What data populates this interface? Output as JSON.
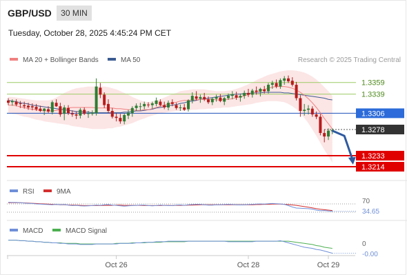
{
  "header": {
    "pair": "GBP/USD",
    "timeframe": "30 MIN",
    "datetime": "Tuesday, October 28, 2025 4:45:24 PM CET"
  },
  "legend": {
    "ma20_label": "MA 20 + Bollinger Bands",
    "ma50_label": "MA 50",
    "credit": "Research © 2025 Trading Central"
  },
  "colors": {
    "up": "#2e7d32",
    "down": "#b71c1c",
    "ma20": "#f08080",
    "ma50": "#3b5b92",
    "band_fill": "#fbdcdc",
    "resistance": "#9ccc65",
    "pivot": "#1a4fb8",
    "support": "#e00000",
    "current": "#333333",
    "arrow": "#2f5aa0",
    "rsi": "#6f8fd8",
    "rsi_ma": "#d32f2f",
    "macd": "#6f8fd8",
    "macd_signal": "#4caf50"
  },
  "chart_data": {
    "type": "candlestick",
    "price_axis_range": [
      1.3195,
      1.338
    ],
    "x_ticks": [
      {
        "index": 27,
        "label": "Oct 26"
      },
      {
        "index": 60,
        "label": "Oct 28"
      },
      {
        "index": 80,
        "label": "Oct 29"
      }
    ],
    "levels": [
      {
        "label": "1.3359",
        "value": 1.3359,
        "kind": "resistance"
      },
      {
        "label": "1.3339",
        "value": 1.3339,
        "kind": "resistance"
      },
      {
        "label": "1.3306",
        "value": 1.3306,
        "kind": "pivot"
      },
      {
        "label": "1.3278",
        "value": 1.3278,
        "kind": "current"
      },
      {
        "label": "1.3233",
        "value": 1.3233,
        "kind": "support"
      },
      {
        "label": "1.3214",
        "value": 1.3214,
        "kind": "support"
      }
    ],
    "forecast_arrow": {
      "from_index": 81,
      "from_value": 1.3276,
      "mid_index": 84,
      "mid_value": 1.3267,
      "to_index": 86,
      "to_value": 1.322
    },
    "candles": [
      [
        1.3328,
        1.3332,
        1.332,
        1.3324
      ],
      [
        1.3325,
        1.333,
        1.3319,
        1.3327
      ],
      [
        1.3326,
        1.333,
        1.3318,
        1.3321
      ],
      [
        1.3323,
        1.3327,
        1.3315,
        1.3322
      ],
      [
        1.332,
        1.3326,
        1.3314,
        1.3318
      ],
      [
        1.3319,
        1.3324,
        1.3312,
        1.3316
      ],
      [
        1.3318,
        1.3323,
        1.3311,
        1.3316
      ],
      [
        1.3317,
        1.3322,
        1.331,
        1.3313
      ],
      [
        1.3314,
        1.3319,
        1.3308,
        1.331
      ],
      [
        1.331,
        1.3315,
        1.3303,
        1.3314
      ],
      [
        1.3313,
        1.3318,
        1.3306,
        1.3309
      ],
      [
        1.3308,
        1.3328,
        1.3304,
        1.3325
      ],
      [
        1.3324,
        1.333,
        1.3317,
        1.3318
      ],
      [
        1.3318,
        1.3324,
        1.33,
        1.3304
      ],
      [
        1.3305,
        1.332,
        1.3294,
        1.3316
      ],
      [
        1.3315,
        1.332,
        1.3303,
        1.3306
      ],
      [
        1.3306,
        1.3311,
        1.33,
        1.3304
      ],
      [
        1.3304,
        1.3309,
        1.3296,
        1.3302
      ],
      [
        1.3302,
        1.3315,
        1.3297,
        1.3312
      ],
      [
        1.3312,
        1.3316,
        1.3303,
        1.3305
      ],
      [
        1.3305,
        1.331,
        1.3298,
        1.3306
      ],
      [
        1.3305,
        1.3311,
        1.3302,
        1.3307
      ],
      [
        1.3306,
        1.3366,
        1.3302,
        1.3352
      ],
      [
        1.335,
        1.3358,
        1.3332,
        1.3338
      ],
      [
        1.3338,
        1.3342,
        1.3315,
        1.332
      ],
      [
        1.3322,
        1.333,
        1.3306,
        1.331
      ],
      [
        1.331,
        1.3315,
        1.3297,
        1.33
      ],
      [
        1.33,
        1.3306,
        1.3292,
        1.3298
      ],
      [
        1.3298,
        1.3305,
        1.3288,
        1.3292
      ],
      [
        1.3292,
        1.3306,
        1.3287,
        1.3303
      ],
      [
        1.3302,
        1.3312,
        1.3296,
        1.3307
      ],
      [
        1.3306,
        1.3318,
        1.33,
        1.3315
      ],
      [
        1.3315,
        1.3323,
        1.331,
        1.3319
      ],
      [
        1.3318,
        1.3324,
        1.3311,
        1.3318
      ],
      [
        1.3318,
        1.3326,
        1.3313,
        1.3322
      ],
      [
        1.3321,
        1.3325,
        1.3316,
        1.332
      ],
      [
        1.332,
        1.3326,
        1.3314,
        1.3323
      ],
      [
        1.3322,
        1.3333,
        1.3318,
        1.3328
      ],
      [
        1.3326,
        1.333,
        1.3318,
        1.332
      ],
      [
        1.332,
        1.3326,
        1.3313,
        1.3316
      ],
      [
        1.3316,
        1.3328,
        1.3311,
        1.3324
      ],
      [
        1.3325,
        1.333,
        1.3318,
        1.3322
      ],
      [
        1.332,
        1.3324,
        1.3312,
        1.3315
      ],
      [
        1.3315,
        1.3321,
        1.331,
        1.3316
      ],
      [
        1.3316,
        1.3322,
        1.331,
        1.3312
      ],
      [
        1.3313,
        1.333,
        1.3309,
        1.3328
      ],
      [
        1.3328,
        1.3342,
        1.3323,
        1.3336
      ],
      [
        1.3335,
        1.3344,
        1.3328,
        1.3331
      ],
      [
        1.3331,
        1.3338,
        1.3324,
        1.3334
      ],
      [
        1.3334,
        1.3341,
        1.3327,
        1.333
      ],
      [
        1.333,
        1.3335,
        1.3322,
        1.3325
      ],
      [
        1.3325,
        1.3333,
        1.332,
        1.3331
      ],
      [
        1.3331,
        1.3338,
        1.3326,
        1.3334
      ],
      [
        1.3333,
        1.3339,
        1.3325,
        1.3327
      ],
      [
        1.3326,
        1.3334,
        1.332,
        1.3332
      ],
      [
        1.3332,
        1.334,
        1.3329,
        1.3336
      ],
      [
        1.3336,
        1.3344,
        1.333,
        1.3338
      ],
      [
        1.3337,
        1.3343,
        1.3329,
        1.3333
      ],
      [
        1.3333,
        1.334,
        1.3326,
        1.3336
      ],
      [
        1.3336,
        1.3345,
        1.3331,
        1.3341
      ],
      [
        1.3341,
        1.3348,
        1.3334,
        1.3338
      ],
      [
        1.3338,
        1.3348,
        1.3333,
        1.3345
      ],
      [
        1.3345,
        1.3352,
        1.3338,
        1.3343
      ],
      [
        1.3343,
        1.335,
        1.3335,
        1.3348
      ],
      [
        1.3347,
        1.3353,
        1.334,
        1.3344
      ],
      [
        1.3344,
        1.3358,
        1.334,
        1.3355
      ],
      [
        1.3355,
        1.3362,
        1.3348,
        1.3358
      ],
      [
        1.3358,
        1.3364,
        1.3349,
        1.3352
      ],
      [
        1.3352,
        1.3366,
        1.3348,
        1.3363
      ],
      [
        1.3362,
        1.337,
        1.3355,
        1.3366
      ],
      [
        1.3366,
        1.3371,
        1.3358,
        1.3361
      ],
      [
        1.3362,
        1.3368,
        1.3352,
        1.3355
      ],
      [
        1.3355,
        1.336,
        1.3328,
        1.3332
      ],
      [
        1.3332,
        1.3337,
        1.33,
        1.331
      ],
      [
        1.331,
        1.3322,
        1.3302,
        1.3312
      ],
      [
        1.3312,
        1.332,
        1.3304,
        1.3314
      ],
      [
        1.3314,
        1.3318,
        1.33,
        1.3304
      ],
      [
        1.3304,
        1.3309,
        1.3296,
        1.33
      ],
      [
        1.33,
        1.3305,
        1.3268,
        1.3272
      ],
      [
        1.3272,
        1.3278,
        1.3256,
        1.3266
      ],
      [
        1.3266,
        1.328,
        1.326,
        1.3276
      ],
      [
        1.3275,
        1.328,
        1.327,
        1.3277
      ]
    ],
    "upper_band": [
      1.3334,
      1.3334,
      1.3333,
      1.3332,
      1.3331,
      1.333,
      1.3329,
      1.3328,
      1.3328,
      1.3328,
      1.3328,
      1.333,
      1.3333,
      1.3337,
      1.3341,
      1.3344,
      1.3347,
      1.3349,
      1.335,
      1.3351,
      1.3352,
      1.3352,
      1.3352,
      1.3352,
      1.3352,
      1.3351,
      1.3349,
      1.3347,
      1.3344,
      1.3341,
      1.3338,
      1.3334,
      1.3331,
      1.3328,
      1.3326,
      1.3325,
      1.3326,
      1.3328,
      1.333,
      1.3333,
      1.3336,
      1.3339,
      1.3341,
      1.3344,
      1.3345,
      1.3346,
      1.3347,
      1.3347,
      1.3347,
      1.3347,
      1.3346,
      1.3345,
      1.3344,
      1.3344,
      1.3344,
      1.3345,
      1.3346,
      1.3348,
      1.335,
      1.3353,
      1.3356,
      1.3359,
      1.3363,
      1.3366,
      1.3369,
      1.3372,
      1.3374,
      1.3376,
      1.3378,
      1.3379,
      1.338,
      1.338,
      1.3379,
      1.3378,
      1.3376,
      1.3373,
      1.3369,
      1.3364,
      1.3358,
      1.3351,
      1.3344,
      1.3336
    ],
    "lower_band": [
      1.3306,
      1.3305,
      1.3304,
      1.3302,
      1.33,
      1.3299,
      1.3297,
      1.3295,
      1.3294,
      1.3292,
      1.3291,
      1.329,
      1.3289,
      1.3288,
      1.3287,
      1.3286,
      1.3284,
      1.3283,
      1.3282,
      1.3281,
      1.328,
      1.3279,
      1.3279,
      1.3279,
      1.3279,
      1.328,
      1.328,
      1.3282,
      1.3283,
      1.3285,
      1.3287,
      1.3289,
      1.3292,
      1.3295,
      1.3297,
      1.33,
      1.3302,
      1.3304,
      1.3306,
      1.3307,
      1.3308,
      1.3309,
      1.331,
      1.331,
      1.3311,
      1.3311,
      1.3312,
      1.3312,
      1.3313,
      1.3313,
      1.3314,
      1.3314,
      1.3315,
      1.3315,
      1.3316,
      1.3316,
      1.3317,
      1.3318,
      1.3319,
      1.332,
      1.3321,
      1.3322,
      1.3324,
      1.3325,
      1.3326,
      1.3327,
      1.3327,
      1.3327,
      1.3326,
      1.3325,
      1.3322,
      1.3318,
      1.3313,
      1.3306,
      1.3298,
      1.3289,
      1.3278,
      1.3267,
      1.3255,
      1.3243,
      1.3232,
      1.3221
    ],
    "ma20": [
      1.332,
      1.332,
      1.3319,
      1.3317,
      1.3316,
      1.3314,
      1.3313,
      1.3312,
      1.3311,
      1.331,
      1.331,
      1.331,
      1.3311,
      1.3312,
      1.3314,
      1.3315,
      1.3316,
      1.3316,
      1.3316,
      1.3316,
      1.3316,
      1.3316,
      1.3315,
      1.3315,
      1.3315,
      1.3315,
      1.3315,
      1.3314,
      1.3314,
      1.3313,
      1.3312,
      1.3312,
      1.3311,
      1.3311,
      1.3312,
      1.3312,
      1.3314,
      1.3316,
      1.3318,
      1.332,
      1.3322,
      1.3324,
      1.3325,
      1.3327,
      1.3328,
      1.3328,
      1.3329,
      1.3329,
      1.333,
      1.333,
      1.333,
      1.333,
      1.3329,
      1.3329,
      1.333,
      1.333,
      1.3331,
      1.3333,
      1.3334,
      1.3336,
      1.3338,
      1.334,
      1.3343,
      1.3345,
      1.3347,
      1.3349,
      1.3351,
      1.3352,
      1.3352,
      1.3352,
      1.3351,
      1.3349,
      1.3346,
      1.3342,
      1.3337,
      1.3331,
      1.3324,
      1.3316,
      1.3307,
      1.3297,
      1.3288,
      1.3279
    ],
    "ma50": [
      1.3328,
      1.3327,
      1.3326,
      1.3324,
      1.3323,
      1.3322,
      1.332,
      1.3319,
      1.3318,
      1.3317,
      1.3316,
      1.3315,
      1.3314,
      1.3313,
      1.3312,
      1.3311,
      1.331,
      1.3309,
      1.3309,
      1.3308,
      1.3308,
      1.3307,
      1.3307,
      1.3307,
      1.3307,
      1.3307,
      1.3307,
      1.3307,
      1.3307,
      1.3308,
      1.3308,
      1.3309,
      1.331,
      1.331,
      1.3311,
      1.3312,
      1.3313,
      1.3315,
      1.3316,
      1.3317,
      1.3319,
      1.332,
      1.3321,
      1.3323,
      1.3324,
      1.3326,
      1.3327,
      1.3328,
      1.333,
      1.3331,
      1.3332,
      1.3333,
      1.3334,
      1.3335,
      1.3336,
      1.3337,
      1.3338,
      1.3339,
      1.3339,
      1.334,
      1.334,
      1.3341,
      1.3341,
      1.3341,
      1.3342,
      1.3342,
      1.3342,
      1.3342,
      1.3342,
      1.3341,
      1.3341,
      1.334,
      1.3339,
      1.3338,
      1.3337,
      1.3336,
      1.3335,
      1.3334,
      1.3333,
      1.3332,
      1.333,
      1.3329
    ],
    "rsi": {
      "name": "RSI",
      "ma_name": "9MA",
      "level_label": "70",
      "level": 70,
      "current_label": "34.65",
      "range": [
        0,
        100
      ],
      "rsi_values": [
        78,
        77,
        77.0,
        76,
        74,
        73,
        72,
        70,
        69,
        68.0,
        67,
        66,
        68,
        66,
        67,
        64,
        62,
        63,
        61,
        60.0,
        61,
        62,
        64,
        63,
        66,
        67,
        64,
        63,
        61,
        59.0,
        61,
        62,
        63,
        64,
        64,
        62,
        61,
        62,
        64,
        63,
        62,
        62,
        64,
        65,
        63,
        66,
        67,
        68,
        68,
        66,
        64,
        64,
        66,
        66,
        67,
        68.0,
        67,
        66,
        65,
        66,
        67,
        68,
        69,
        70,
        69,
        71,
        72.0,
        71,
        70,
        68,
        62,
        55,
        50,
        49,
        48,
        47,
        45,
        40,
        37,
        38.0,
        36,
        34.65
      ],
      "ma_values": [
        76,
        76,
        76.0,
        76,
        75,
        74,
        73,
        72,
        71,
        70.0,
        69,
        68,
        67,
        66,
        66,
        65,
        64,
        64,
        63,
        62.0,
        62,
        62,
        62,
        62,
        63,
        63,
        63,
        64,
        64,
        63.0,
        63,
        63,
        63,
        63,
        62,
        62,
        62,
        62,
        62,
        63,
        63,
        62,
        63,
        63,
        63,
        64,
        64,
        65,
        66,
        66,
        66,
        66,
        66,
        66,
        66,
        66.0,
        66,
        66,
        66,
        66,
        66,
        66,
        67,
        67,
        68,
        68,
        69.0,
        69,
        69,
        68,
        67,
        65,
        63,
        60,
        57,
        54,
        51,
        47,
        44,
        42.0,
        40,
        38
      ]
    },
    "macd": {
      "name": "MACD",
      "signal_name": "MACD Signal",
      "zero_label": "0",
      "current_label": "-0.00",
      "range": [
        -0.0026,
        0.0008
      ],
      "macd_values": [
        0.0001,
        0.0001,
        0.0001,
        0.0,
        -0.0,
        -0.0001,
        -0.0001,
        -0.0002,
        -0.0002,
        -0.0003,
        -0.0003,
        -0.0004,
        -0.0004,
        -0.0005,
        -0.0005,
        -0.0006,
        -0.0006,
        -0.0006,
        -0.0007,
        -0.0007,
        -0.0007,
        -0.0007,
        -0.0006,
        -0.0006,
        -0.0006,
        -0.0006,
        -0.0006,
        -0.0006,
        -0.0005,
        -0.0005,
        -0.0005,
        -0.0005,
        -0.0004,
        -0.0004,
        -0.0003,
        -0.0003,
        -0.0003,
        -0.0002,
        -0.0002,
        -0.0002,
        -0.0001,
        -0.0001,
        -0.0001,
        -0.0001,
        -0.0001,
        -0.0001,
        -0.0001,
        -0.0001,
        -0.0001,
        -0.0001,
        -0.0001,
        -0.0001,
        -0.0001,
        -0.0001,
        -0.0001,
        -0.0002,
        -0.0002,
        -0.0002,
        -0.0002,
        -0.0002,
        -0.0002,
        -0.0002,
        -0.0001,
        -0.0001,
        -0.0001,
        -0.0001,
        -0.0001,
        -0.0001,
        -0.0,
        -0.0002,
        -0.0004,
        -0.0006,
        -0.0008,
        -0.001,
        -0.0012,
        -0.0013,
        -0.0014,
        -0.0016,
        -0.0017,
        -0.0019,
        -0.0021,
        -0.0023
      ],
      "signal_values": [
        0.0001,
        0.0001,
        0.0001,
        0.0,
        -0.0,
        -0.0001,
        -0.0001,
        -0.0002,
        -0.0002,
        -0.0003,
        -0.0003,
        -0.0004,
        -0.0004,
        -0.0004,
        -0.0005,
        -0.0005,
        -0.0005,
        -0.0005,
        -0.0006,
        -0.0006,
        -0.0006,
        -0.0006,
        -0.0006,
        -0.0006,
        -0.0006,
        -0.0006,
        -0.0006,
        -0.0005,
        -0.0005,
        -0.0005,
        -0.0005,
        -0.0004,
        -0.0004,
        -0.0004,
        -0.0004,
        -0.0003,
        -0.0003,
        -0.0003,
        -0.0003,
        -0.0002,
        -0.0002,
        -0.0002,
        -0.0002,
        -0.0002,
        -0.0002,
        -0.0001,
        -0.0001,
        -0.0001,
        -0.0001,
        -0.0001,
        -0.0001,
        -0.0001,
        -0.0001,
        -0.0001,
        -0.0001,
        -0.0001,
        -0.0001,
        -0.0001,
        -0.0001,
        -0.0001,
        -0.0001,
        -0.0001,
        -0.0001,
        -0.0001,
        -0.0001,
        -0.0001,
        -0.0001,
        -0.0001,
        -0.0001,
        -0.0001,
        -0.0001,
        -0.0002,
        -0.0003,
        -0.0004,
        -0.0005,
        -0.0006,
        -0.0007,
        -0.0009,
        -0.001,
        -0.0012,
        -0.0013,
        -0.0014
      ]
    }
  }
}
